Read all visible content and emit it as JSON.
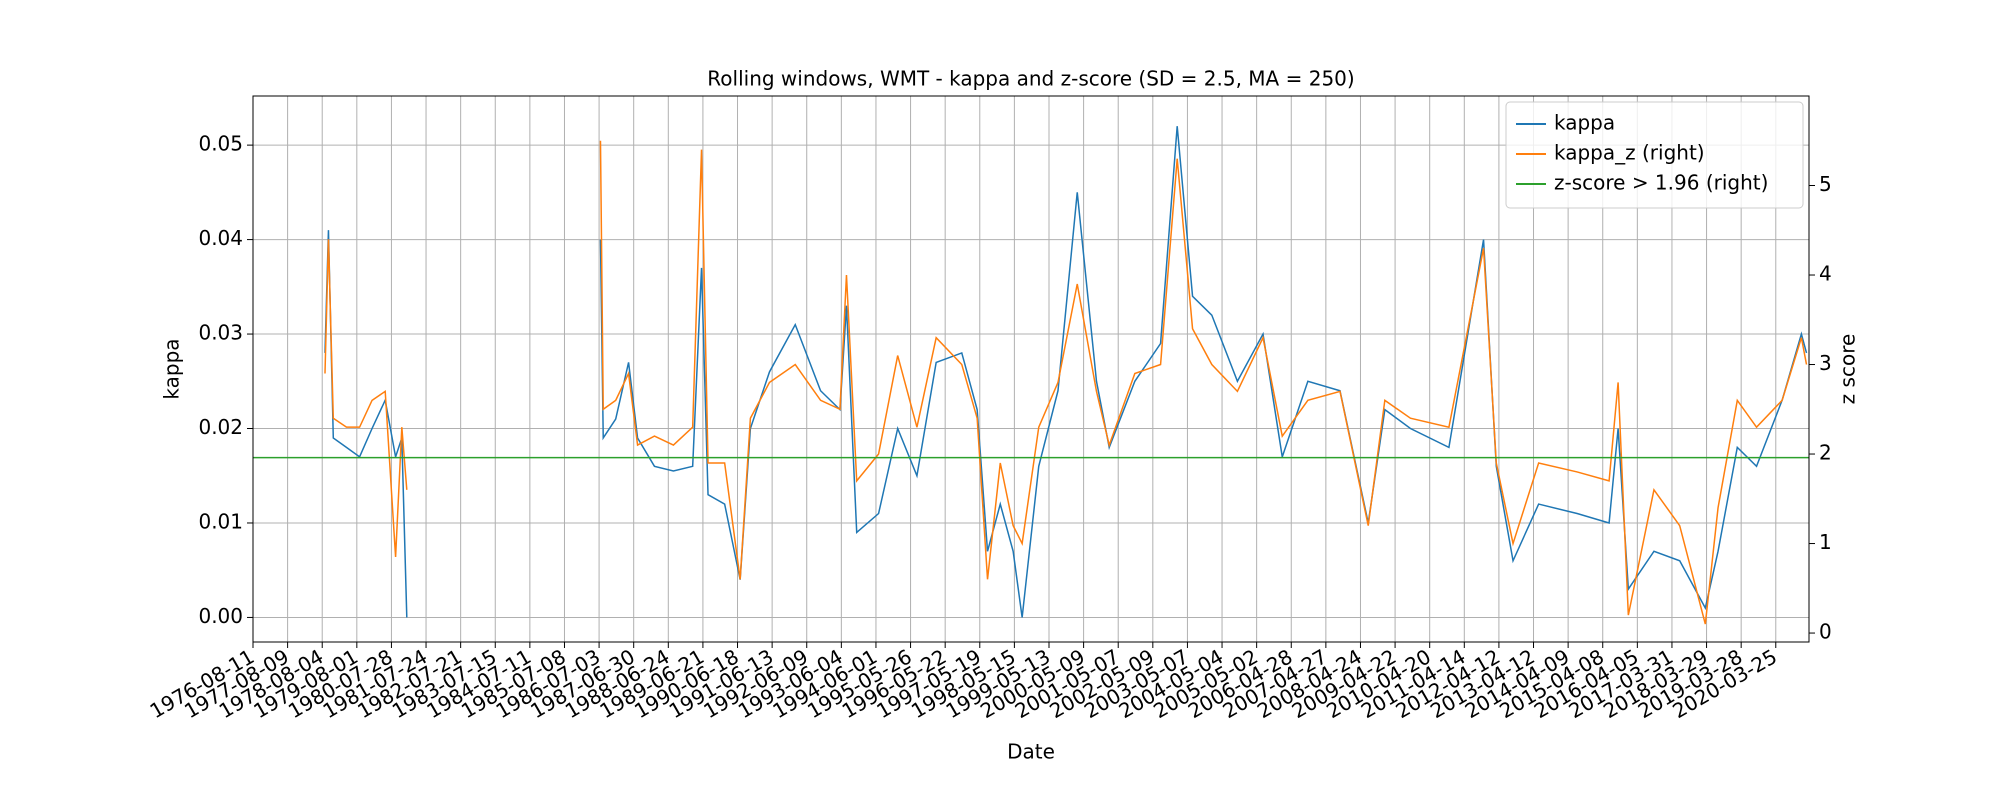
{
  "chart_data": {
    "type": "line",
    "title": "Rolling windows, WMT - kappa and z-score (SD = 2.5, MA = 250)",
    "xlabel": "Date",
    "ylabel": "kappa",
    "y2label": "z score",
    "x": [
      520,
      545,
      580,
      675,
      770,
      860,
      955,
      1030,
      1075,
      1111,
      1200,
      2510,
      2530,
      2620,
      2713,
      2778,
      2900,
      3037,
      3176,
      3240,
      3287,
      3407,
      3519,
      3593,
      3731,
      3917,
      4100,
      4240,
      4287,
      4361,
      4519,
      4657,
      4796,
      4935,
      5120,
      5231,
      5306,
      5398,
      5491,
      5556,
      5676,
      5815,
      5954,
      6093,
      6185,
      6370,
      6556,
      6676,
      6787,
      6926,
      7111,
      7296,
      7435,
      7620,
      7852,
      8056,
      8176,
      8361,
      8639,
      8889,
      8981,
      9102,
      9287,
      9565,
      9796,
      9861,
      9935,
      10120,
      10306,
      10491,
      10583,
      10722,
      10861,
      11046,
      11185,
      11222
    ],
    "series": [
      {
        "name": "kappa",
        "color": "#1f77b4",
        "axis": "y",
        "values": [
          0.028,
          0.041,
          0.019,
          0.018,
          0.017,
          0.02,
          0.023,
          0.017,
          0.019,
          0.0,
          null,
          0.04,
          0.019,
          0.021,
          0.027,
          0.019,
          0.016,
          0.0155,
          0.016,
          0.037,
          0.013,
          0.012,
          0.004,
          0.02,
          0.026,
          0.031,
          0.024,
          0.022,
          0.033,
          0.009,
          0.011,
          0.02,
          0.015,
          0.027,
          0.028,
          0.022,
          0.007,
          0.012,
          0.007,
          0.0,
          0.016,
          0.024,
          0.045,
          0.025,
          0.018,
          0.025,
          0.029,
          0.052,
          0.034,
          0.032,
          0.025,
          0.03,
          0.017,
          0.025,
          0.024,
          0.01,
          0.022,
          0.02,
          0.018,
          0.04,
          0.016,
          0.006,
          0.012,
          0.011,
          0.01,
          0.02,
          0.003,
          0.007,
          0.006,
          0.001,
          0.007,
          0.018,
          0.016,
          0.023,
          0.03,
          0.028
        ]
      },
      {
        "name": "kappa_z (right)",
        "color": "#ff7f0e",
        "axis": "y2",
        "values": [
          2.9,
          4.4,
          2.4,
          2.3,
          2.3,
          2.6,
          2.7,
          0.85,
          2.3,
          1.6,
          null,
          5.5,
          2.5,
          2.6,
          2.9,
          2.1,
          2.2,
          2.1,
          2.3,
          5.4,
          1.9,
          1.9,
          0.6,
          2.4,
          2.8,
          3.0,
          2.6,
          2.5,
          4.0,
          1.7,
          2.0,
          3.1,
          2.3,
          3.3,
          3.0,
          2.4,
          0.6,
          1.9,
          1.2,
          1.0,
          2.3,
          2.8,
          3.9,
          2.7,
          2.1,
          2.9,
          3.0,
          5.3,
          3.4,
          3.0,
          2.7,
          3.3,
          2.2,
          2.6,
          2.7,
          1.2,
          2.6,
          2.4,
          2.3,
          4.3,
          1.9,
          1.0,
          1.9,
          1.8,
          1.7,
          2.8,
          0.2,
          1.6,
          1.2,
          0.1,
          1.4,
          2.6,
          2.3,
          2.6,
          3.3,
          3.0
        ]
      }
    ],
    "hlines": [
      {
        "name": "z-score > 1.96 (right)",
        "color": "#2ca02c",
        "value": 1.96,
        "axis": "y2"
      }
    ],
    "xlim": [
      0,
      11240
    ],
    "xticks": [
      {
        "value": 0,
        "label": "1976-08-11"
      },
      {
        "value": 250,
        "label": "1977-08-09"
      },
      {
        "value": 500,
        "label": "1978-08-04"
      },
      {
        "value": 750,
        "label": "1979-08-01"
      },
      {
        "value": 1000,
        "label": "1980-07-28"
      },
      {
        "value": 1250,
        "label": "1981-07-24"
      },
      {
        "value": 1500,
        "label": "1982-07-21"
      },
      {
        "value": 1750,
        "label": "1983-07-15"
      },
      {
        "value": 2000,
        "label": "1984-07-11"
      },
      {
        "value": 2250,
        "label": "1985-07-08"
      },
      {
        "value": 2500,
        "label": "1986-07-03"
      },
      {
        "value": 2750,
        "label": "1987-06-30"
      },
      {
        "value": 3000,
        "label": "1988-06-24"
      },
      {
        "value": 3250,
        "label": "1989-06-21"
      },
      {
        "value": 3500,
        "label": "1990-06-18"
      },
      {
        "value": 3750,
        "label": "1991-06-13"
      },
      {
        "value": 4000,
        "label": "1992-06-09"
      },
      {
        "value": 4250,
        "label": "1993-06-04"
      },
      {
        "value": 4500,
        "label": "1994-06-01"
      },
      {
        "value": 4750,
        "label": "1995-05-26"
      },
      {
        "value": 5000,
        "label": "1996-05-22"
      },
      {
        "value": 5250,
        "label": "1997-05-19"
      },
      {
        "value": 5500,
        "label": "1998-05-15"
      },
      {
        "value": 5750,
        "label": "1999-05-13"
      },
      {
        "value": 6000,
        "label": "2000-05-09"
      },
      {
        "value": 6250,
        "label": "2001-05-07"
      },
      {
        "value": 6500,
        "label": "2002-05-09"
      },
      {
        "value": 6750,
        "label": "2003-05-07"
      },
      {
        "value": 7000,
        "label": "2004-05-04"
      },
      {
        "value": 7250,
        "label": "2005-05-02"
      },
      {
        "value": 7500,
        "label": "2006-04-28"
      },
      {
        "value": 7750,
        "label": "2007-04-27"
      },
      {
        "value": 8000,
        "label": "2008-04-24"
      },
      {
        "value": 8250,
        "label": "2009-04-22"
      },
      {
        "value": 8500,
        "label": "2010-04-20"
      },
      {
        "value": 8750,
        "label": "2011-04-14"
      },
      {
        "value": 9000,
        "label": "2012-04-12"
      },
      {
        "value": 9250,
        "label": "2013-04-12"
      },
      {
        "value": 9500,
        "label": "2014-04-09"
      },
      {
        "value": 9750,
        "label": "2015-04-08"
      },
      {
        "value": 10000,
        "label": "2016-04-05"
      },
      {
        "value": 10250,
        "label": "2017-03-31"
      },
      {
        "value": 10500,
        "label": "2018-03-29"
      },
      {
        "value": 10750,
        "label": "2019-03-28"
      },
      {
        "value": 11000,
        "label": "2020-03-25"
      }
    ],
    "ylim": [
      -0.0026,
      0.0552
    ],
    "yticks": [
      {
        "value": 0,
        "label": "0.00"
      },
      {
        "value": 0.01,
        "label": "0.01"
      },
      {
        "value": 0.02,
        "label": "0.02"
      },
      {
        "value": 0.03,
        "label": "0.03"
      },
      {
        "value": 0.04,
        "label": "0.04"
      },
      {
        "value": 0.05,
        "label": "0.05"
      }
    ],
    "y2lim": [
      -0.1,
      6.0
    ],
    "y2ticks": [
      0,
      1,
      2,
      3,
      4,
      5
    ],
    "grid": true,
    "legend": "upper right"
  }
}
